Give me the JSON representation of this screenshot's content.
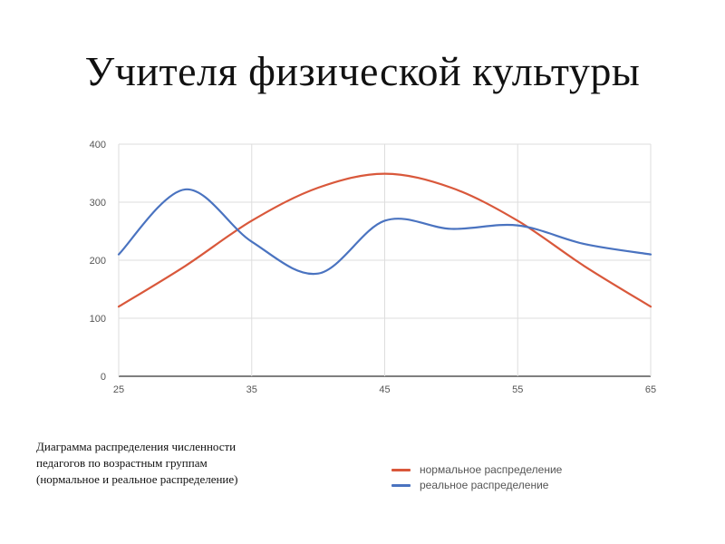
{
  "slide": {
    "title": "Учителя физической культуры",
    "caption_lines": [
      "Диаграмма распределения численности",
      "педагогов по возрастным группам",
      "(нормальное и реальное распределение)"
    ]
  },
  "chart_data": {
    "type": "line",
    "title": "",
    "xlabel": "",
    "ylabel": "",
    "xlim": [
      25,
      65
    ],
    "ylim": [
      0,
      400
    ],
    "x_ticks": [
      25,
      35,
      45,
      55,
      65
    ],
    "y_ticks": [
      0,
      100,
      200,
      300,
      400
    ],
    "grid": true,
    "smooth": true,
    "legend_position": "bottom-right",
    "series": [
      {
        "name": "нормальное распределение",
        "color": "#d9583b",
        "x": [
          25,
          30,
          35,
          40,
          45,
          50,
          55,
          60,
          65
        ],
        "values": [
          120,
          190,
          268,
          325,
          349,
          325,
          268,
          190,
          120
        ]
      },
      {
        "name": "реальное распределение",
        "color": "#4a73c0",
        "x": [
          25,
          30,
          35,
          40,
          45,
          50,
          55,
          60,
          65
        ],
        "values": [
          210,
          322,
          232,
          177,
          268,
          254,
          260,
          228,
          210
        ]
      }
    ]
  }
}
